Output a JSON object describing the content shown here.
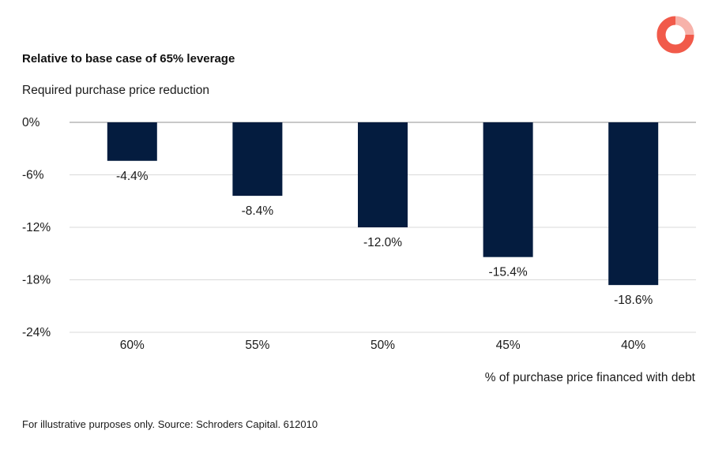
{
  "title": "Relative to base case of 65% leverage",
  "footnote": "For illustrative purposes only. Source: Schroders Capital. 612010",
  "logo": {
    "icon": "schroders-ring-logo-icon",
    "colors": [
      "#f15a4a",
      "#f7b2aa"
    ]
  },
  "colors": {
    "bar": "#041c3f",
    "grid": "#d9d9d9",
    "zero_line": "#a6a6a6",
    "text": "#1a1a1a"
  },
  "chart_data": {
    "type": "bar",
    "title": "Relative to base case of 65% leverage",
    "ylabel": "Required purchase price reduction",
    "xlabel": "% of purchase price financed with debt",
    "categories": [
      "60%",
      "55%",
      "50%",
      "45%",
      "40%"
    ],
    "values": [
      -4.4,
      -8.4,
      -12.0,
      -15.4,
      -18.6
    ],
    "data_labels": [
      "-4.4%",
      "-8.4%",
      "-12.0%",
      "-15.4%",
      "-18.6%"
    ],
    "ylim": [
      -24,
      0
    ],
    "yticks": [
      0,
      -6,
      -12,
      -18,
      -24
    ],
    "ytick_labels": [
      "0%",
      "-6%",
      "-12%",
      "-18%",
      "-24%"
    ],
    "grid": true,
    "legend": "none"
  }
}
